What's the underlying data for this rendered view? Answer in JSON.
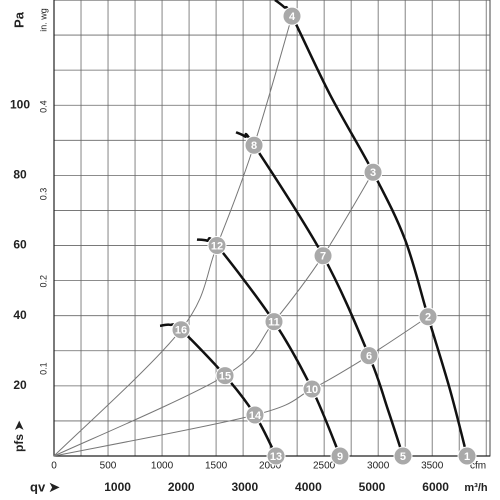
{
  "chart_data": {
    "type": "line",
    "x_label": "qv ➤",
    "x_unit": "m³/h",
    "x2_unit": "cfm",
    "y_label": "Pa",
    "y2_label": "in. wg",
    "y_axis_symbol": "pfs ➤",
    "xlim": [
      0,
      6855
    ],
    "xticks": [
      1000,
      2000,
      3000,
      4000,
      5000,
      6000
    ],
    "x2lim": [
      0,
      4035
    ],
    "x2ticks": [
      0,
      500,
      1000,
      1500,
      2000,
      2500,
      3000,
      3500
    ],
    "x2grid": [
      250,
      500,
      750,
      1000,
      1250,
      1500,
      1750,
      2000,
      2250,
      2500,
      2750,
      3000,
      3250,
      3500,
      3750,
      4000
    ],
    "ylim": [
      0,
      130
    ],
    "yticks": [
      20,
      40,
      60,
      80,
      100
    ],
    "ygrid": [
      10,
      20,
      30,
      40,
      50,
      60,
      70,
      80,
      90,
      100,
      110,
      120
    ],
    "y2lim": [
      0,
      0.522
    ],
    "y2ticks": [
      0.1,
      0.2,
      0.3,
      0.4
    ],
    "series": [
      {
        "color": "#111111",
        "width": 2.5,
        "x": [
          3475,
          3616,
          3742,
          4340,
          5016,
          5519,
          5881,
          6226,
          6494
        ],
        "values": [
          130,
          128,
          125.4,
          103,
          80.9,
          61.7,
          39.7,
          18.9,
          0
        ]
      },
      {
        "color": "#111111",
        "width": 2.5,
        "x": [
          2862,
          3003,
          3145,
          4230,
          4953,
          5252,
          5487
        ],
        "values": [
          92.3,
          91.1,
          88.6,
          57.1,
          28.6,
          13.1,
          0
        ]
      },
      {
        "color": "#111111",
        "width": 2.5,
        "x": [
          2248,
          2406,
          2563,
          3459,
          4057,
          4497
        ],
        "values": [
          61.7,
          61.4,
          60,
          38.3,
          19.1,
          0
        ]
      },
      {
        "color": "#111111",
        "width": 2.5,
        "x": [
          1667,
          1824,
          1997,
          2689,
          3160,
          3491
        ],
        "values": [
          37.1,
          37.4,
          36,
          22.9,
          11.7,
          0
        ]
      },
      {
        "color": "#777777",
        "width": 1,
        "x": [
          0,
          1997,
          2563,
          3145,
          3742
        ],
        "values": [
          0,
          36,
          60,
          88.6,
          125.4
        ]
      },
      {
        "color": "#777777",
        "width": 1,
        "x": [
          0,
          2689,
          3459,
          4230,
          5016
        ],
        "values": [
          0,
          22.9,
          38.3,
          57.1,
          80.9
        ]
      },
      {
        "color": "#777777",
        "width": 1,
        "x": [
          0,
          3160,
          4057,
          4953,
          5881
        ],
        "values": [
          0,
          11.7,
          19.1,
          28.6,
          39.7
        ]
      }
    ],
    "points": {
      "color": "#a9a9a9",
      "labels": [
        "1",
        "2",
        "3",
        "4",
        "5",
        "6",
        "7",
        "8",
        "9",
        "10",
        "11",
        "12",
        "13",
        "14",
        "15",
        "16"
      ],
      "x": [
        6494,
        5881,
        5016,
        3742,
        5487,
        4953,
        4230,
        3145,
        4497,
        4057,
        3459,
        2563,
        3491,
        3160,
        2689,
        1997
      ],
      "values": [
        0,
        39.7,
        80.9,
        125.4,
        0,
        28.6,
        57.1,
        88.6,
        0,
        19.1,
        38.3,
        60,
        0,
        11.7,
        22.9,
        36
      ]
    }
  }
}
